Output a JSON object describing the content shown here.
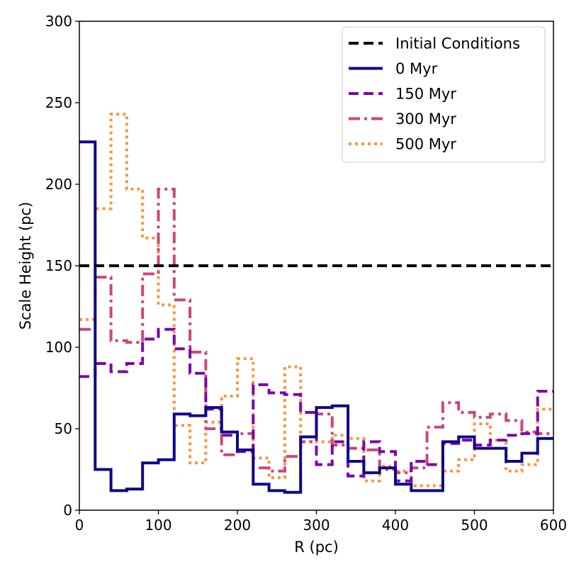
{
  "chart_data": {
    "type": "line",
    "drawstyle": "steps-post",
    "title": "",
    "xlabel": "R (pc)",
    "ylabel": "Scale Height (pc)",
    "xlim": [
      0,
      600
    ],
    "ylim": [
      0,
      300
    ],
    "xticks": [
      0,
      100,
      200,
      300,
      400,
      500,
      600
    ],
    "yticks": [
      0,
      50,
      100,
      150,
      200,
      250,
      300
    ],
    "legend_position": "top-right",
    "bin_edges": [
      0,
      20,
      40,
      60,
      80,
      100,
      120,
      140,
      160,
      180,
      200,
      220,
      240,
      260,
      280,
      300,
      320,
      340,
      360,
      380,
      400,
      420,
      440,
      460,
      480,
      500,
      520,
      540,
      560,
      580,
      600
    ],
    "series": [
      {
        "name": "Initial Conditions",
        "color": "#000000",
        "dash": "dashed",
        "constant": 150
      },
      {
        "name": "0 Myr",
        "color": "#0d0887",
        "dash": "solid",
        "values": [
          226,
          25,
          12,
          13,
          29,
          31,
          59,
          58,
          63,
          48,
          37,
          16,
          12,
          11,
          45,
          63,
          64,
          30,
          23,
          26,
          16,
          12,
          12,
          42,
          45,
          38,
          38,
          30,
          35,
          44
        ]
      },
      {
        "name": "150 Myr",
        "color": "#7e03a8",
        "dash": "dashed",
        "values": [
          82,
          90,
          85,
          90,
          105,
          111,
          99,
          84,
          62,
          46,
          36,
          77,
          72,
          71,
          60,
          28,
          42,
          21,
          42,
          36,
          18,
          30,
          28,
          41,
          43,
          40,
          43,
          46,
          47,
          73
        ]
      },
      {
        "name": "300 Myr",
        "color": "#cc4778",
        "dash": "dashdot",
        "values": [
          111,
          143,
          104,
          103,
          145,
          197,
          129,
          97,
          50,
          34,
          47,
          26,
          24,
          33,
          42,
          59,
          40,
          38,
          37,
          25,
          23,
          26,
          51,
          66,
          60,
          57,
          59,
          55,
          48,
          47
        ]
      },
      {
        "name": "500 Myr",
        "color": "#f89540",
        "dash": "dotted",
        "values": [
          117,
          185,
          243,
          197,
          167,
          126,
          52,
          29,
          54,
          70,
          93,
          32,
          20,
          88,
          42,
          42,
          46,
          44,
          18,
          27,
          24,
          15,
          15,
          24,
          31,
          53,
          43,
          24,
          28,
          62
        ]
      }
    ]
  }
}
